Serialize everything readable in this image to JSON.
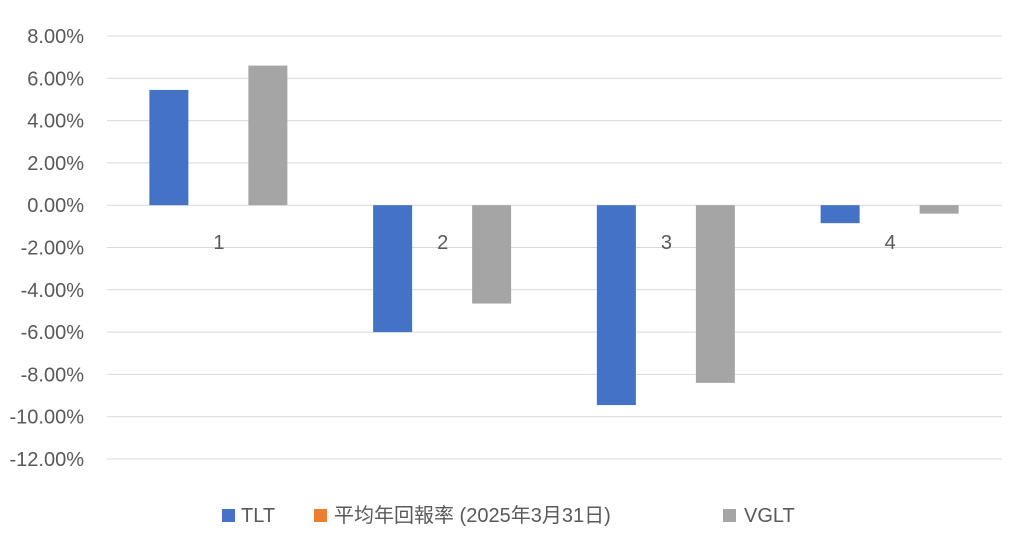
{
  "chart_data": {
    "type": "bar",
    "categories": [
      "1",
      "2",
      "3",
      "4"
    ],
    "series": [
      {
        "name": "TLT",
        "color": "#4472c4",
        "values": [
          5.45,
          -6.0,
          -9.45,
          -0.85
        ]
      },
      {
        "name": "平均年回報率 (2025年3月31日)",
        "color": "#ed7d31",
        "values": [
          null,
          null,
          null,
          null
        ]
      },
      {
        "name": "VGLT",
        "color": "#a5a5a5",
        "values": [
          6.6,
          -4.65,
          -8.4,
          -0.4
        ]
      }
    ],
    "ylim": [
      -12,
      8
    ],
    "yticks": [
      8,
      6,
      4,
      2,
      0,
      -2,
      -4,
      -6,
      -8,
      -10,
      -12
    ],
    "ytick_labels": [
      "8.00%",
      "6.00%",
      "4.00%",
      "2.00%",
      "0.00%",
      "-2.00%",
      "-4.00%",
      "-6.00%",
      "-8.00%",
      "-10.00%",
      "-12.00%"
    ],
    "title": "",
    "xlabel": "",
    "ylabel": "",
    "grid": true,
    "legend_position": "bottom"
  }
}
